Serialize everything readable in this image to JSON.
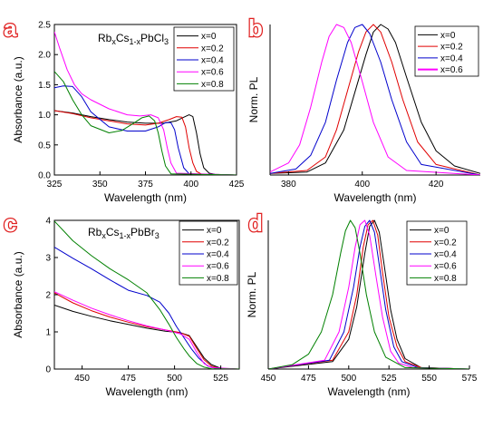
{
  "chart_data": [
    {
      "panel": "a",
      "type": "line",
      "annotation": {
        "base": "Rb",
        "sub1": "x",
        "mid": "Cs",
        "sub2": "1-x",
        "tail": "PbCl",
        "sub3": "3"
      },
      "xlabel": "Wavelength (nm)",
      "ylabel": "Absorbance (a.u.)",
      "xlim": [
        325,
        425
      ],
      "ylim": [
        0,
        2.5
      ],
      "xticks": [
        325,
        350,
        375,
        400,
        425
      ],
      "yticks": [
        0.0,
        0.5,
        1.0,
        1.5,
        2.0,
        2.5
      ],
      "ytick_labels": [
        "0.0",
        "0.5",
        "1.0",
        "1.5",
        "2.0",
        "2.5"
      ],
      "legend_position": "top-right",
      "series": [
        {
          "name": "x=0",
          "color": "#000000",
          "x": [
            325,
            335,
            345,
            355,
            365,
            375,
            385,
            392,
            396,
            399,
            401,
            403,
            405,
            407,
            410,
            413,
            425
          ],
          "y": [
            1.07,
            1.03,
            0.97,
            0.92,
            0.88,
            0.86,
            0.86,
            0.9,
            0.96,
            1.0,
            0.97,
            0.7,
            0.35,
            0.12,
            0.03,
            0.01,
            0.0
          ]
        },
        {
          "name": "x=0.2",
          "color": "#e00000",
          "x": [
            325,
            335,
            345,
            355,
            365,
            375,
            382,
            388,
            392,
            395,
            397,
            399,
            401,
            403,
            406,
            425
          ],
          "y": [
            1.07,
            1.02,
            0.95,
            0.9,
            0.85,
            0.83,
            0.86,
            0.92,
            0.97,
            0.96,
            0.8,
            0.45,
            0.2,
            0.06,
            0.01,
            0.0
          ]
        },
        {
          "name": "x=0.4",
          "color": "#0000cc",
          "x": [
            325,
            330,
            335,
            340,
            345,
            355,
            365,
            375,
            382,
            386,
            389,
            391,
            393,
            396,
            399,
            425
          ],
          "y": [
            1.45,
            1.48,
            1.47,
            1.3,
            1.05,
            0.8,
            0.73,
            0.73,
            0.8,
            0.87,
            0.87,
            0.75,
            0.45,
            0.12,
            0.02,
            0.0
          ]
        },
        {
          "name": "x=0.6",
          "color": "#ff00ff",
          "x": [
            325,
            328,
            332,
            336,
            340,
            345,
            355,
            365,
            372,
            378,
            382,
            385,
            387,
            389,
            392,
            425
          ],
          "y": [
            2.38,
            2.1,
            1.75,
            1.5,
            1.35,
            1.25,
            1.1,
            1.0,
            0.98,
            1.0,
            0.95,
            0.75,
            0.45,
            0.2,
            0.03,
            0.0
          ]
        },
        {
          "name": "x=0.8",
          "color": "#008000",
          "x": [
            325,
            330,
            335,
            340,
            345,
            355,
            362,
            368,
            373,
            377,
            380,
            382,
            384,
            386,
            389,
            425
          ],
          "y": [
            1.72,
            1.55,
            1.25,
            1.0,
            0.82,
            0.7,
            0.74,
            0.85,
            0.95,
            0.98,
            0.9,
            0.7,
            0.4,
            0.15,
            0.02,
            0.0
          ]
        }
      ]
    },
    {
      "panel": "b",
      "type": "line",
      "xlabel": "Wavelength (nm)",
      "ylabel": "Norm. PL",
      "xlim": [
        375,
        432
      ],
      "xticks": [
        380,
        400,
        420
      ],
      "legend_position": "top-right",
      "series": [
        {
          "name": "x=0",
          "color": "#000000",
          "x": [
            375,
            385,
            390,
            395,
            398,
            401,
            403,
            405,
            407,
            409,
            412,
            416,
            420,
            425,
            432
          ],
          "y": [
            0.01,
            0.02,
            0.08,
            0.3,
            0.55,
            0.8,
            0.95,
            1.0,
            0.97,
            0.88,
            0.65,
            0.35,
            0.16,
            0.06,
            0.01
          ]
        },
        {
          "name": "x=0.2",
          "color": "#e00000",
          "x": [
            375,
            385,
            390,
            393,
            396,
            399,
            401,
            403,
            405,
            408,
            411,
            415,
            420,
            432
          ],
          "y": [
            0.01,
            0.03,
            0.12,
            0.3,
            0.56,
            0.82,
            0.95,
            1.0,
            0.95,
            0.75,
            0.5,
            0.22,
            0.07,
            0.0
          ]
        },
        {
          "name": "x=0.4",
          "color": "#0000cc",
          "x": [
            375,
            382,
            386,
            390,
            393,
            396,
            398,
            400,
            402,
            405,
            408,
            412,
            416,
            432
          ],
          "y": [
            0.01,
            0.04,
            0.13,
            0.35,
            0.63,
            0.88,
            0.98,
            1.0,
            0.94,
            0.75,
            0.5,
            0.22,
            0.07,
            0.0
          ]
        },
        {
          "name": "x=0.6",
          "color": "#ff00ff",
          "x": [
            375,
            380,
            383,
            386,
            389,
            391,
            393,
            395,
            397,
            400,
            403,
            407,
            412,
            432
          ],
          "y": [
            0.02,
            0.08,
            0.2,
            0.45,
            0.75,
            0.92,
            1.0,
            0.98,
            0.88,
            0.62,
            0.35,
            0.12,
            0.03,
            0.0
          ]
        }
      ]
    },
    {
      "panel": "c",
      "type": "line",
      "annotation": {
        "base": "Rb",
        "sub1": "x",
        "mid": "Cs",
        "sub2": "1-x",
        "tail": "PbBr",
        "sub3": "3"
      },
      "xlabel": "Wavelength (nm)",
      "ylabel": "Absorbance (a.u.)",
      "xlim": [
        435,
        535
      ],
      "ylim": [
        0,
        4
      ],
      "xticks": [
        450,
        475,
        500,
        525
      ],
      "yticks": [
        0,
        1,
        2,
        3,
        4
      ],
      "ytick_labels": [
        "0",
        "1",
        "2",
        "3",
        "4"
      ],
      "legend_position": "top-right",
      "series": [
        {
          "name": "x=0",
          "color": "#000000",
          "x": [
            435,
            445,
            455,
            465,
            475,
            485,
            495,
            503,
            508,
            512,
            516,
            520,
            524,
            527,
            535
          ],
          "y": [
            1.72,
            1.55,
            1.42,
            1.3,
            1.2,
            1.1,
            1.02,
            0.98,
            0.9,
            0.6,
            0.3,
            0.12,
            0.04,
            0.01,
            0.0
          ]
        },
        {
          "name": "x=0.2",
          "color": "#e00000",
          "x": [
            435,
            445,
            455,
            465,
            475,
            485,
            495,
            503,
            508,
            512,
            516,
            520,
            524,
            535
          ],
          "y": [
            2.05,
            1.78,
            1.57,
            1.4,
            1.26,
            1.14,
            1.05,
            0.98,
            0.88,
            0.55,
            0.25,
            0.08,
            0.02,
            0.0
          ]
        },
        {
          "name": "x=0.4",
          "color": "#0000cc",
          "x": [
            435,
            445,
            455,
            465,
            475,
            485,
            492,
            497,
            501,
            505,
            509,
            513,
            518,
            522,
            535
          ],
          "y": [
            3.28,
            2.98,
            2.7,
            2.4,
            2.12,
            1.98,
            1.8,
            1.5,
            1.15,
            0.85,
            0.55,
            0.3,
            0.08,
            0.02,
            0.0
          ]
        },
        {
          "name": "x=0.6",
          "color": "#ff00ff",
          "x": [
            435,
            445,
            455,
            465,
            475,
            485,
            495,
            503,
            508,
            512,
            516,
            520,
            535
          ],
          "y": [
            2.08,
            1.85,
            1.64,
            1.46,
            1.3,
            1.16,
            1.05,
            0.95,
            0.8,
            0.45,
            0.15,
            0.04,
            0.0
          ]
        },
        {
          "name": "x=0.8",
          "color": "#008000",
          "x": [
            435,
            445,
            455,
            465,
            475,
            485,
            492,
            497,
            501,
            505,
            508,
            512,
            516,
            520,
            535
          ],
          "y": [
            3.98,
            3.45,
            3.05,
            2.7,
            2.4,
            2.05,
            1.6,
            1.2,
            0.85,
            0.55,
            0.35,
            0.15,
            0.05,
            0.01,
            0.0
          ]
        }
      ]
    },
    {
      "panel": "d",
      "type": "line",
      "xlabel": "Wavelength (nm)",
      "ylabel": "Norm. PL",
      "xlim": [
        450,
        575
      ],
      "xticks": [
        450,
        475,
        500,
        525,
        550,
        575
      ],
      "legend_position": "top-right",
      "series": [
        {
          "name": "x=0",
          "color": "#000000",
          "x": [
            450,
            490,
            500,
            505,
            510,
            513,
            516,
            519,
            522,
            526,
            530,
            535,
            545,
            575
          ],
          "y": [
            0.0,
            0.05,
            0.2,
            0.42,
            0.78,
            0.96,
            1.0,
            0.92,
            0.7,
            0.4,
            0.2,
            0.07,
            0.01,
            0.0
          ]
        },
        {
          "name": "x=0.2",
          "color": "#e00000",
          "x": [
            450,
            490,
            500,
            505,
            509,
            512,
            515,
            518,
            521,
            525,
            530,
            535,
            545,
            575
          ],
          "y": [
            0.0,
            0.06,
            0.25,
            0.5,
            0.82,
            0.97,
            1.0,
            0.9,
            0.65,
            0.35,
            0.15,
            0.05,
            0.01,
            0.0
          ]
        },
        {
          "name": "x=0.4",
          "color": "#0000cc",
          "x": [
            450,
            488,
            497,
            503,
            507,
            510,
            513,
            516,
            519,
            523,
            528,
            533,
            543,
            575
          ],
          "y": [
            0.0,
            0.06,
            0.25,
            0.55,
            0.82,
            0.96,
            1.0,
            0.92,
            0.7,
            0.4,
            0.15,
            0.05,
            0.01,
            0.0
          ]
        },
        {
          "name": "x=0.6",
          "color": "#ff00ff",
          "x": [
            450,
            485,
            494,
            500,
            504,
            507,
            510,
            513,
            517,
            521,
            526,
            531,
            540,
            575
          ],
          "y": [
            0.0,
            0.06,
            0.25,
            0.55,
            0.82,
            0.97,
            1.0,
            0.9,
            0.62,
            0.35,
            0.12,
            0.04,
            0.01,
            0.0
          ]
        },
        {
          "name": "x=0.8",
          "color": "#008000",
          "x": [
            450,
            465,
            475,
            483,
            490,
            495,
            498,
            501,
            504,
            507,
            511,
            516,
            523,
            535,
            575
          ],
          "y": [
            0.0,
            0.03,
            0.1,
            0.25,
            0.5,
            0.78,
            0.93,
            1.0,
            0.95,
            0.78,
            0.5,
            0.25,
            0.08,
            0.01,
            0.0
          ]
        }
      ]
    }
  ],
  "panel_letters": [
    "a",
    "b",
    "c",
    "d"
  ]
}
